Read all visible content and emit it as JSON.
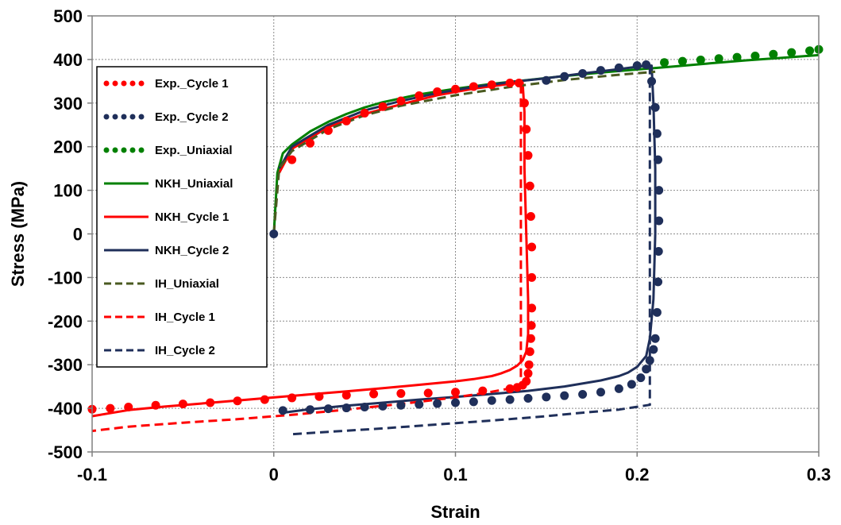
{
  "chart_data": {
    "type": "line",
    "title": "",
    "xlabel": "Strain",
    "ylabel": "Stress (MPa)",
    "xlim": [
      -0.1,
      0.3
    ],
    "ylim": [
      -500,
      500
    ],
    "xticks": [
      -0.1,
      0,
      0.1,
      0.2,
      0.3
    ],
    "xtick_labels": [
      "-0.1",
      "0",
      "0.1",
      "0.2",
      "0.3"
    ],
    "yticks": [
      -500,
      -400,
      -300,
      -200,
      -100,
      0,
      100,
      200,
      300,
      400,
      500
    ],
    "ytick_labels": [
      "-500",
      "-400",
      "-300",
      "-200",
      "-100",
      "0",
      "100",
      "200",
      "300",
      "400",
      "500"
    ],
    "grid": true,
    "legend_position": "top-left",
    "series": [
      {
        "name": "Exp._Cycle 1",
        "style": "dots",
        "color": "#ff0000",
        "x": [
          0.01,
          0.02,
          0.03,
          0.04,
          0.05,
          0.06,
          0.07,
          0.08,
          0.09,
          0.1,
          0.11,
          0.12,
          0.13,
          0.135,
          0.138,
          0.139,
          0.14,
          0.141,
          0.1415,
          0.142,
          0.142,
          0.142,
          0.1418,
          0.1415,
          0.141,
          0.1405,
          0.14,
          0.139,
          0.137,
          0.134,
          0.13,
          0.115,
          0.1,
          0.085,
          0.07,
          0.055,
          0.04,
          0.025,
          0.01,
          -0.005,
          -0.02,
          -0.035,
          -0.05,
          -0.065,
          -0.08,
          -0.09,
          -0.1
        ],
        "y": [
          170,
          208,
          237,
          259,
          277,
          292,
          305,
          317,
          326,
          332,
          338,
          342,
          346,
          346,
          300,
          240,
          180,
          110,
          40,
          -30,
          -100,
          -170,
          -210,
          -240,
          -270,
          -300,
          -320,
          -338,
          -347,
          -352,
          -355,
          -360,
          -363,
          -365,
          -366,
          -367,
          -370,
          -373,
          -376,
          -380,
          -383,
          -387,
          -390,
          -393,
          -397,
          -400,
          -402
        ]
      },
      {
        "name": "Exp._Cycle 2",
        "style": "dots",
        "color": "#1f2f5a",
        "x": [
          0,
          0.15,
          0.16,
          0.17,
          0.18,
          0.19,
          0.2,
          0.205,
          0.208,
          0.21,
          0.211,
          0.2115,
          0.212,
          0.212,
          0.2118,
          0.2115,
          0.211,
          0.21,
          0.209,
          0.207,
          0.205,
          0.202,
          0.197,
          0.19,
          0.18,
          0.17,
          0.16,
          0.15,
          0.14,
          0.13,
          0.12,
          0.11,
          0.1,
          0.09,
          0.08,
          0.07,
          0.06,
          0.05,
          0.04,
          0.03,
          0.02,
          0.005
        ],
        "y": [
          0,
          352,
          361,
          368,
          375,
          381,
          386,
          388,
          350,
          290,
          230,
          170,
          100,
          30,
          -40,
          -110,
          -180,
          -240,
          -265,
          -290,
          -310,
          -330,
          -345,
          -355,
          -363,
          -368,
          -371,
          -374,
          -377,
          -380,
          -382,
          -385,
          -387,
          -389,
          -391,
          -393,
          -395,
          -397,
          -399,
          -401,
          -403,
          -405
        ]
      },
      {
        "name": "Exp._Uniaxial",
        "style": "dots",
        "color": "#008000",
        "x": [
          0.215,
          0.225,
          0.235,
          0.245,
          0.255,
          0.265,
          0.275,
          0.285,
          0.295,
          0.3
        ],
        "y": [
          393,
          396,
          399,
          402,
          405,
          408,
          412,
          416,
          420,
          423
        ]
      },
      {
        "name": "NKH_Uniaxial",
        "style": "solid",
        "color": "#008000",
        "x": [
          0,
          0.002,
          0.005,
          0.01,
          0.02,
          0.03,
          0.04,
          0.05,
          0.06,
          0.08,
          0.1,
          0.12,
          0.14,
          0.16,
          0.18,
          0.2,
          0.22,
          0.24,
          0.26,
          0.28,
          0.3
        ],
        "y": [
          0,
          140,
          185,
          205,
          235,
          257,
          275,
          290,
          302,
          320,
          333,
          344,
          353,
          362,
          370,
          377,
          384,
          391,
          398,
          404,
          410
        ]
      },
      {
        "name": "NKH_Cycle 1",
        "style": "solid",
        "color": "#ff0000",
        "x": [
          0.003,
          0.01,
          0.03,
          0.05,
          0.07,
          0.09,
          0.11,
          0.13,
          0.137,
          0.138,
          0.138,
          0.139,
          0.14,
          0.14,
          0.139,
          0.137,
          0.134,
          0.13,
          0.125,
          0.12,
          0.11,
          0.1,
          0.08,
          0.06,
          0.04,
          0.02,
          0,
          -0.02,
          -0.04,
          -0.06,
          -0.08,
          -0.1
        ],
        "y": [
          140,
          195,
          245,
          275,
          297,
          318,
          333,
          344,
          347,
          280,
          150,
          0,
          -150,
          -230,
          -270,
          -290,
          -302,
          -312,
          -320,
          -326,
          -333,
          -338,
          -346,
          -354,
          -361,
          -368,
          -375,
          -382,
          -389,
          -396,
          -404,
          -418
        ]
      },
      {
        "name": "NKH_Cycle 2",
        "style": "solid",
        "color": "#1f2f5a",
        "x": [
          0.003,
          0.01,
          0.03,
          0.05,
          0.07,
          0.09,
          0.11,
          0.13,
          0.15,
          0.17,
          0.19,
          0.205,
          0.208,
          0.209,
          0.21,
          0.21,
          0.209,
          0.207,
          0.205,
          0.2,
          0.195,
          0.19,
          0.18,
          0.16,
          0.14,
          0.12,
          0.1,
          0.08,
          0.06,
          0.04,
          0.02,
          0.005
        ],
        "y": [
          150,
          200,
          250,
          283,
          305,
          323,
          337,
          348,
          357,
          368,
          378,
          386,
          386,
          300,
          150,
          0,
          -150,
          -240,
          -280,
          -305,
          -318,
          -326,
          -336,
          -350,
          -360,
          -367,
          -374,
          -380,
          -387,
          -394,
          -402,
          -410
        ]
      },
      {
        "name": "IH_Uniaxial",
        "style": "dashed",
        "color": "#4a5a20",
        "x": [
          0,
          0.003,
          0.01,
          0.03,
          0.05,
          0.07,
          0.1,
          0.13,
          0.16,
          0.19,
          0.21
        ],
        "y": [
          0,
          150,
          190,
          240,
          272,
          294,
          318,
          337,
          353,
          365,
          372
        ]
      },
      {
        "name": "IH_Cycle 1",
        "style": "dashed",
        "color": "#ff0000",
        "x": [
          0.136,
          0.136,
          0.12,
          0.1,
          0.07,
          0.04,
          0.01,
          -0.02,
          -0.05,
          -0.08,
          -0.1
        ],
        "y": [
          342,
          -350,
          -362,
          -375,
          -390,
          -403,
          -415,
          -425,
          -433,
          -442,
          -452
        ]
      },
      {
        "name": "IH_Cycle 2",
        "style": "dashed",
        "color": "#1f2f5a",
        "x": [
          0.207,
          0.207,
          0.19,
          0.17,
          0.15,
          0.12,
          0.09,
          0.06,
          0.03,
          0.008
        ],
        "y": [
          386,
          -392,
          -403,
          -410,
          -418,
          -428,
          -437,
          -446,
          -454,
          -460
        ]
      }
    ]
  }
}
